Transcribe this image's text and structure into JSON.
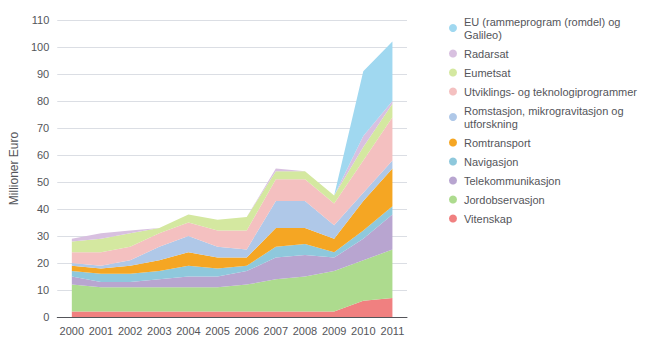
{
  "chart_data": {
    "type": "area",
    "stacked": true,
    "categories": [
      "2000",
      "2001",
      "2002",
      "2003",
      "2004",
      "2005",
      "2006",
      "2007",
      "2008",
      "2009",
      "2010",
      "2011"
    ],
    "series": [
      {
        "name": "Vitenskap",
        "color": "#F08080",
        "values": [
          2,
          2,
          2,
          2,
          2,
          2,
          2,
          2,
          2,
          2,
          6,
          7
        ]
      },
      {
        "name": "Jordobservasjon",
        "color": "#ADDB8E",
        "values": [
          10,
          9,
          9,
          9,
          9,
          9,
          10,
          12,
          13,
          15,
          15,
          18
        ]
      },
      {
        "name": "Telekommunikasjon",
        "color": "#B8A5D0",
        "values": [
          3,
          2,
          2,
          3,
          4,
          4,
          5,
          8,
          8,
          5,
          8,
          13
        ]
      },
      {
        "name": "Navigasjon",
        "color": "#8EC8DC",
        "values": [
          2,
          3,
          3,
          3,
          4,
          3,
          2,
          4,
          4,
          2,
          3,
          3
        ]
      },
      {
        "name": "Romtransport",
        "color": "#F5A623",
        "values": [
          2,
          2,
          3,
          4,
          5,
          4,
          3,
          7,
          6,
          5,
          11,
          14
        ]
      },
      {
        "name": "Romstasjon, mikrogravitasjon og\nutforskning",
        "color": "#AFC8E8",
        "values": [
          1,
          1,
          2,
          5,
          6,
          4,
          3,
          10,
          10,
          5,
          3,
          3
        ]
      },
      {
        "name": "Utviklings- og teknologiprogrammer",
        "color": "#F4C0C0",
        "values": [
          4,
          5,
          5,
          5,
          5,
          6,
          7,
          8,
          8,
          8,
          12,
          16
        ]
      },
      {
        "name": "Eumetsat",
        "color": "#D4E8A0",
        "values": [
          4,
          5,
          5,
          2,
          3,
          4,
          5,
          3,
          3,
          3,
          5,
          5
        ]
      },
      {
        "name": "Radarsat",
        "color": "#D8C0E0",
        "values": [
          1,
          2,
          1,
          0,
          0,
          0,
          0,
          1,
          0,
          0,
          4,
          1
        ]
      },
      {
        "name": "EU (rammeprogram (romdel) og\nGalileo)",
        "color": "#A0D8F0",
        "values": [
          0,
          0,
          0,
          0,
          0,
          0,
          0,
          0,
          0,
          0,
          24,
          22
        ]
      }
    ],
    "ylabel": "Millioner Euro",
    "ylim": [
      0,
      110
    ],
    "yticks": [
      0,
      10,
      20,
      30,
      40,
      50,
      60,
      70,
      80,
      90,
      100,
      110
    ],
    "grid": true,
    "legend": "right"
  }
}
